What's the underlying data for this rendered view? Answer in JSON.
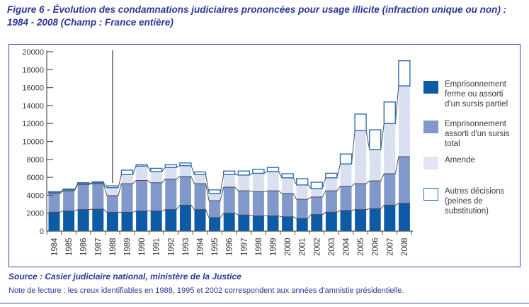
{
  "title": "Figure 6 - Évolution des condamnations judiciaires prononcées pour usage illicite (infraction unique ou non) : 1984 - 2008 (Champ : France entière)",
  "source": "Source : Casier judiciaire national, ministère de la Justice",
  "note": "Note de lecture : les creux identifiables en 1988, 1995 et 2002 correspondent aux années d'amnistie présidentielle.",
  "colors": {
    "navy_text": "#2c3792",
    "box_border": "#34509e",
    "axis": "#555555",
    "outline": "#4d4d4d",
    "amnesty_line": "#3f3f3f"
  },
  "legend": {
    "items": [
      {
        "label": "Emprisonnement\nferme ou assorti\nd'un sursis partiel"
      },
      {
        "label": "Emprisonnement\nassorti d'un sursis\ntotal"
      },
      {
        "label": "Amende"
      },
      {
        "label": "Autres décisions\n(peines de\nsubstitution)"
      }
    ]
  },
  "chart_data": {
    "type": "bar",
    "stacked": true,
    "title": "",
    "xlabel": "",
    "ylabel": "",
    "ylim": [
      0,
      20000
    ],
    "ytick_step": 2000,
    "grid": false,
    "legend_position": "right",
    "annotation_line_at_category": "1988",
    "categories": [
      "1984",
      "1985",
      "1986",
      "1987",
      "1988",
      "1989",
      "1990",
      "1991",
      "1992",
      "1993",
      "1994",
      "1995",
      "1996",
      "1997",
      "1998",
      "1999",
      "2000",
      "2001",
      "2002",
      "2003",
      "2004",
      "2005",
      "2006",
      "2007",
      "2008"
    ],
    "series": [
      {
        "name": "Emprisonnement ferme ou assorti d'un sursis partiel",
        "color": "#0d5aa7",
        "values": [
          2100,
          2250,
          2400,
          2450,
          2100,
          2100,
          2250,
          2250,
          2400,
          2900,
          2400,
          1500,
          2000,
          1800,
          1700,
          1700,
          1600,
          1400,
          1850,
          2100,
          2300,
          2400,
          2500,
          2900,
          3100
        ]
      },
      {
        "name": "Emprisonnement assorti d'un sursis total",
        "color": "#8098ca",
        "values": [
          2100,
          2250,
          2800,
          2850,
          1850,
          3200,
          3400,
          3150,
          3400,
          3200,
          2900,
          1900,
          2900,
          2700,
          2700,
          2800,
          2600,
          2150,
          1950,
          2400,
          2700,
          2900,
          3100,
          3500,
          5200
        ]
      },
      {
        "name": "Amende",
        "color": "#cfd8ec",
        "pattern": "dots",
        "values": [
          100,
          100,
          100,
          100,
          900,
          1000,
          1600,
          1250,
          1300,
          1200,
          1000,
          800,
          1400,
          1750,
          2050,
          2150,
          1750,
          1600,
          950,
          1450,
          2500,
          5900,
          3500,
          5600,
          7900
        ]
      },
      {
        "name": "Autres décisions (peines de substitution)",
        "color": "#ffffff",
        "border": "#2e6fb7",
        "values": [
          100,
          100,
          100,
          100,
          200,
          500,
          150,
          350,
          300,
          300,
          300,
          400,
          400,
          450,
          450,
          450,
          450,
          700,
          700,
          500,
          1100,
          1850,
          2200,
          2400,
          2800
        ]
      }
    ]
  }
}
